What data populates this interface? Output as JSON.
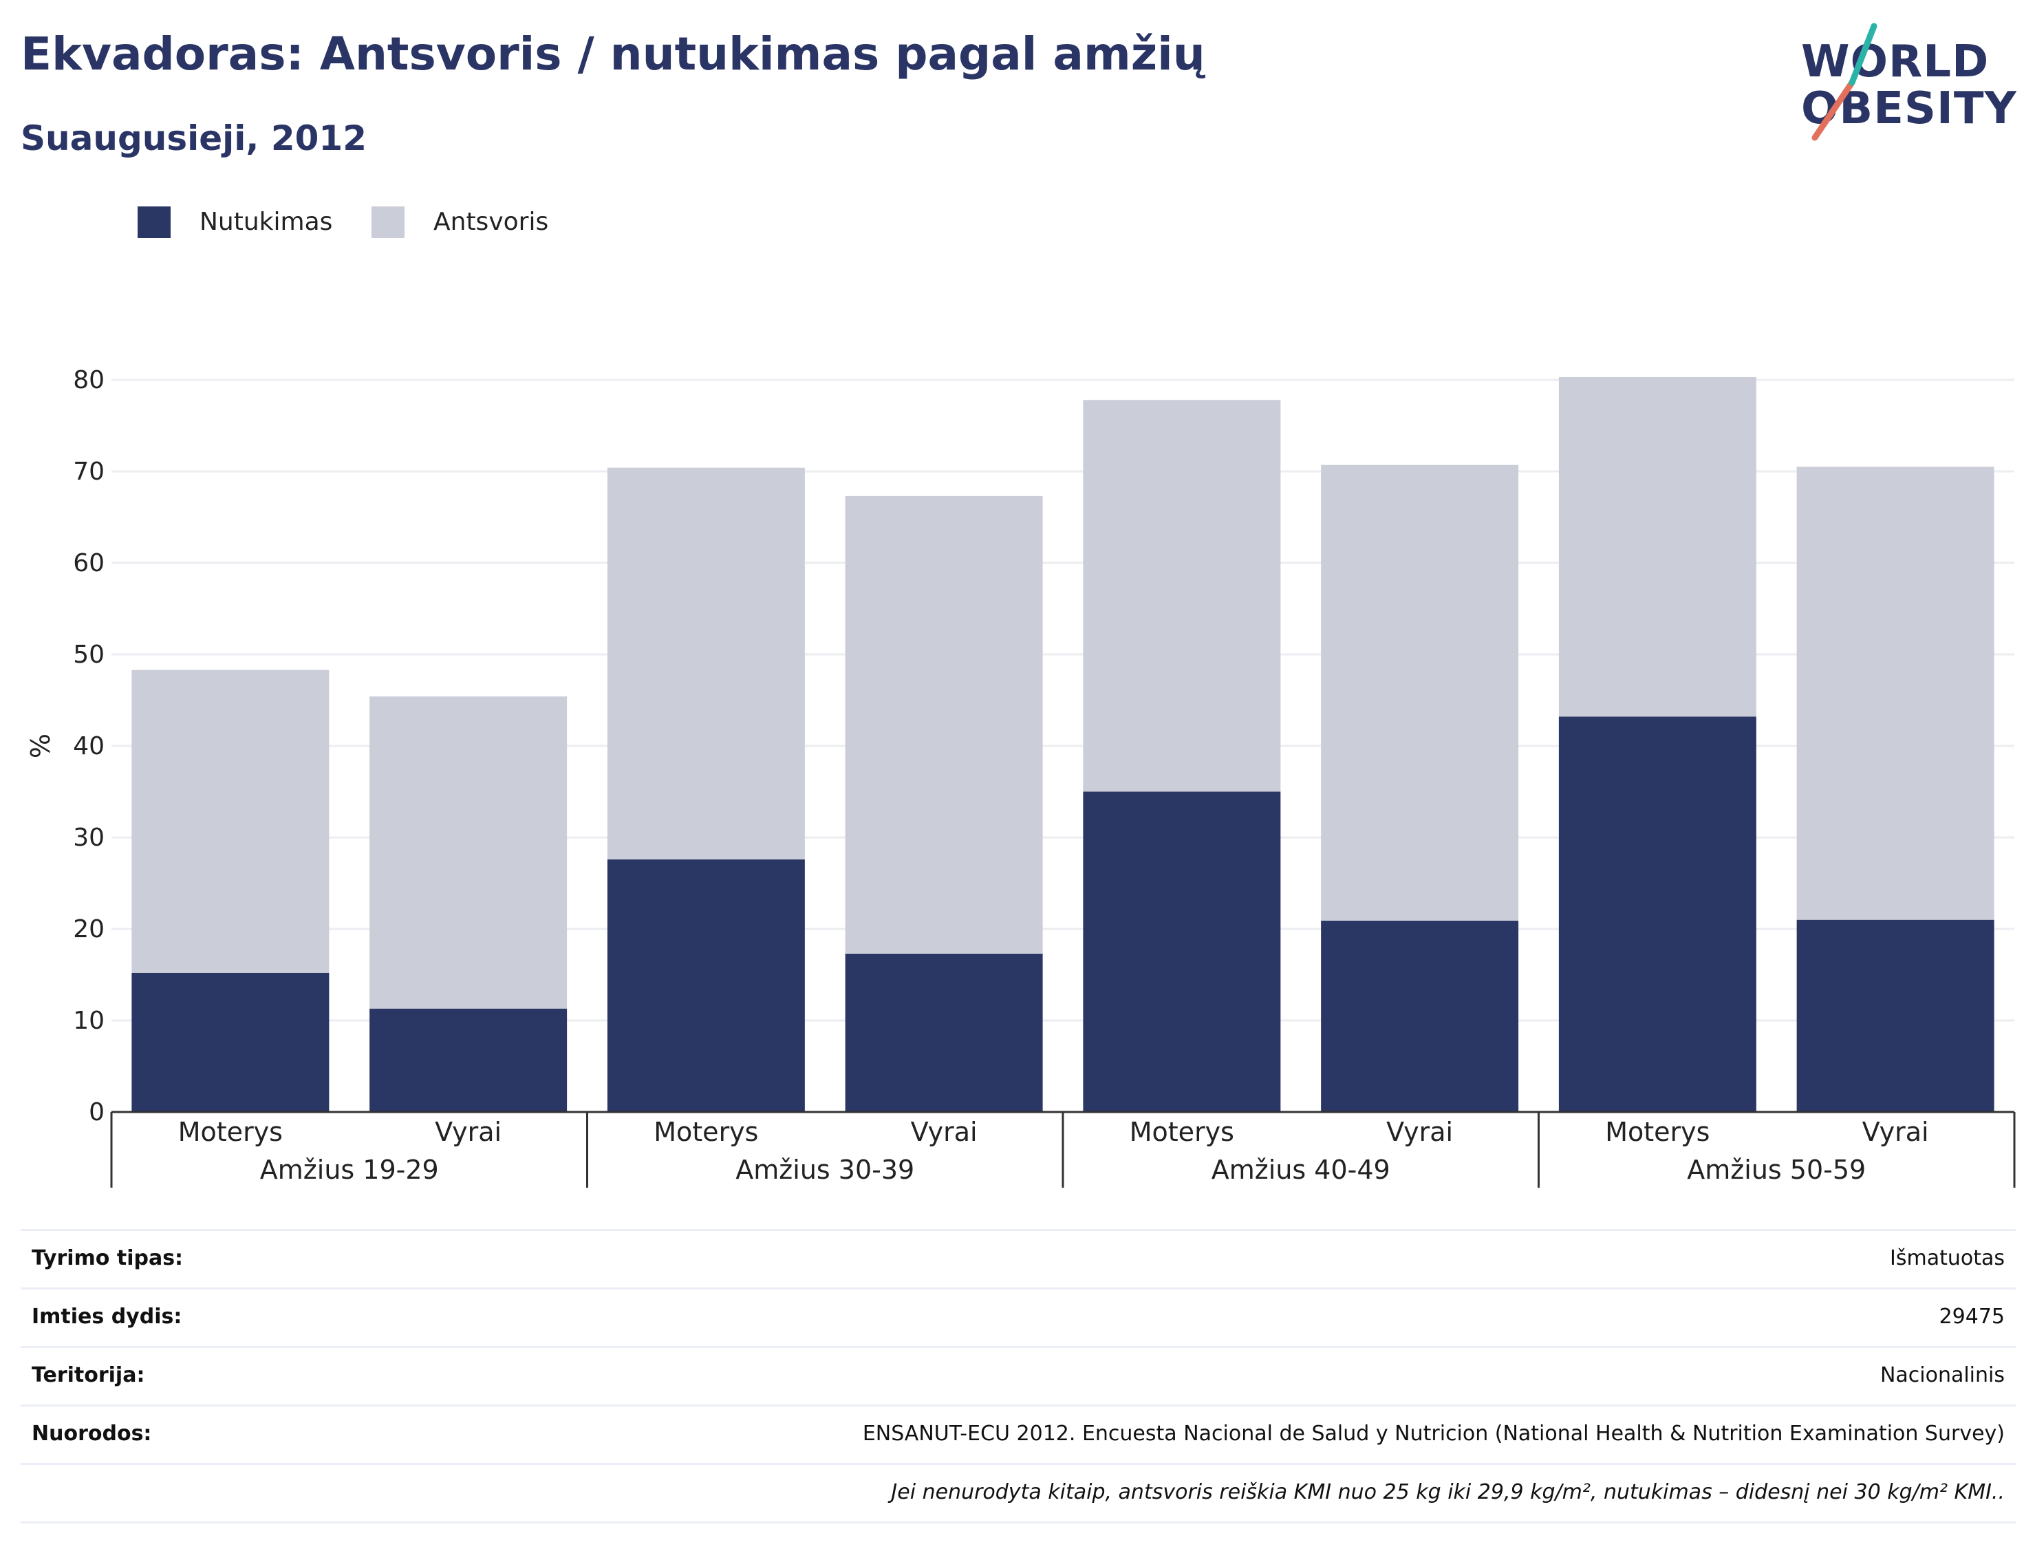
{
  "header": {
    "title": "Ekvadoras: Antsvoris / nutukimas pagal amžių",
    "subtitle": "Suaugusieji, 2012"
  },
  "logo": {
    "line1": "WORLD",
    "line2": "OBESITY"
  },
  "legend": [
    {
      "label": "Nutukimas",
      "color": "#2a3663"
    },
    {
      "label": "Antsvoris",
      "color": "#cbcdd8"
    }
  ],
  "chart_data": {
    "type": "bar",
    "stacked": true,
    "ylabel": "%",
    "ylim": [
      0,
      80
    ],
    "yticks": [
      0,
      10,
      20,
      30,
      40,
      50,
      60,
      70,
      80
    ],
    "grid": true,
    "legend_position": "top-left",
    "groups": [
      "Amžius 19-29",
      "Amžius 30-39",
      "Amžius 40-49",
      "Amžius 50-59"
    ],
    "categories": [
      "Moterys",
      "Vyrai",
      "Moterys",
      "Vyrai",
      "Moterys",
      "Vyrai",
      "Moterys",
      "Vyrai"
    ],
    "series": [
      {
        "name": "Nutukimas",
        "color": "#2a3663",
        "values": [
          15.2,
          11.3,
          27.6,
          17.3,
          35.0,
          20.9,
          43.2,
          21.0
        ]
      },
      {
        "name": "Antsvoris",
        "color": "#cbcdd8",
        "values": [
          33.1,
          34.1,
          42.8,
          50.0,
          42.8,
          49.8,
          37.1,
          49.5
        ]
      }
    ]
  },
  "info": [
    {
      "label": "Tyrimo tipas:",
      "value": "Išmatuotas"
    },
    {
      "label": "Imties dydis:",
      "value": "29475"
    },
    {
      "label": "Teritorija:",
      "value": "Nacionalinis"
    },
    {
      "label": "Nuorodos:",
      "value": "ENSANUT-ECU 2012. Encuesta Nacional de Salud y Nutricion (National Health & Nutrition Examination Survey)"
    }
  ],
  "note": "Jei nenurodyta kitaip, antsvoris reiškia KMI nuo 25 kg iki 29,9 kg/m², nutukimas – didesnį nei 30 kg/m² KMI.."
}
